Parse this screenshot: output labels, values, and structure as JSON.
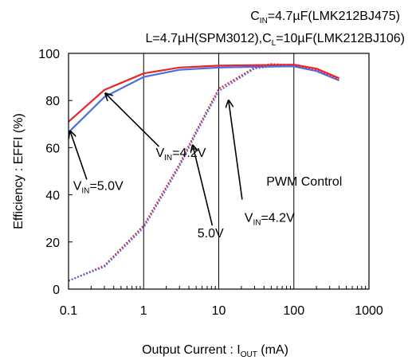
{
  "chart_data": {
    "type": "line",
    "header": {
      "line1": {
        "pre": "C",
        "sub": "IN",
        "post": "=4.7µF(LMK212BJ475)"
      },
      "line2": {
        "pre": "L=4.7µH(SPM3012),C",
        "sub": "L",
        "post": "=10µF(LMK212BJ106)"
      }
    },
    "xlabel": {
      "pre": "Output Current : I",
      "sub": "OUT",
      "post": " (mA)"
    },
    "ylabel": "Efficiency : EFFI (%)",
    "x_scale": "log",
    "xlim": [
      0.1,
      1000
    ],
    "ylim": [
      0,
      100
    ],
    "x_ticks": [
      {
        "v": 0.1,
        "label": "0.1"
      },
      {
        "v": 1,
        "label": "1"
      },
      {
        "v": 10,
        "label": "10"
      },
      {
        "v": 100,
        "label": "100"
      },
      {
        "v": 1000,
        "label": "1000"
      }
    ],
    "y_ticks": [
      {
        "v": 0,
        "label": "0"
      },
      {
        "v": 20,
        "label": "20"
      },
      {
        "v": 40,
        "label": "40"
      },
      {
        "v": 60,
        "label": "60"
      },
      {
        "v": 80,
        "label": "80"
      },
      {
        "v": 100,
        "label": "100"
      }
    ],
    "grid": {
      "vertical": true,
      "horizontal": false
    },
    "series": [
      {
        "id": "auto-4v2",
        "color": "#e8232a",
        "dash": "solid",
        "x": [
          0.1,
          0.3,
          1,
          3,
          10,
          30,
          100,
          200,
          400
        ],
        "y": [
          71,
          84.5,
          91.5,
          94,
          94.8,
          95,
          95.2,
          93.5,
          89.5
        ]
      },
      {
        "id": "auto-5v0",
        "color": "#4a6fe0",
        "dash": "solid",
        "x": [
          0.1,
          0.3,
          1,
          3,
          10,
          30,
          100,
          200,
          400
        ],
        "y": [
          66.5,
          81.5,
          90,
          93,
          94,
          94.3,
          94.5,
          92.5,
          88.5
        ]
      },
      {
        "id": "pwm-4v2",
        "color": "#e8232a",
        "dash": "dotted",
        "x": [
          0.1,
          0.3,
          1,
          3,
          5,
          10,
          30,
          50,
          100,
          200,
          400
        ],
        "y": [
          3.5,
          10,
          27,
          53,
          67,
          85,
          94,
          95.5,
          95,
          93,
          89
        ]
      },
      {
        "id": "pwm-5v0",
        "color": "#4a6fe0",
        "dash": "dotted",
        "x": [
          0.1,
          0.3,
          1,
          3,
          5,
          10,
          30,
          50,
          100,
          200,
          400
        ],
        "y": [
          3.5,
          9.5,
          26,
          52,
          66,
          84,
          93.5,
          94.5,
          94.5,
          92.5,
          88.5
        ]
      }
    ],
    "annotations": [
      {
        "id": "vin42-upper",
        "pre": "V",
        "sub": "IN",
        "post": "=4.2V",
        "text_at": [
          1.45,
          56
        ],
        "arrow_from": [
          1.6,
          60.5
        ],
        "arrow_to": [
          0.31,
          83
        ]
      },
      {
        "id": "vin50-upper",
        "pre": "V",
        "sub": "IN",
        "post": "=5.0V",
        "text_at": [
          0.115,
          42
        ],
        "arrow_from": [
          0.175,
          46.5
        ],
        "arrow_to": [
          0.105,
          67
        ]
      },
      {
        "id": "pwm-control",
        "text": "PWM Control",
        "text_at": [
          43,
          44
        ]
      },
      {
        "id": "vin42-lower",
        "pre": "V",
        "sub": "IN",
        "post": "=4.2V",
        "text_at": [
          22,
          28.5
        ],
        "arrow_from": [
          20.5,
          38
        ],
        "arrow_to": [
          13.5,
          80
        ]
      },
      {
        "id": "vin50-lower",
        "text": "5.0V",
        "text_at": [
          5.2,
          22
        ],
        "arrow_from": [
          8.2,
          27
        ],
        "arrow_to": [
          4.5,
          61
        ]
      }
    ]
  }
}
